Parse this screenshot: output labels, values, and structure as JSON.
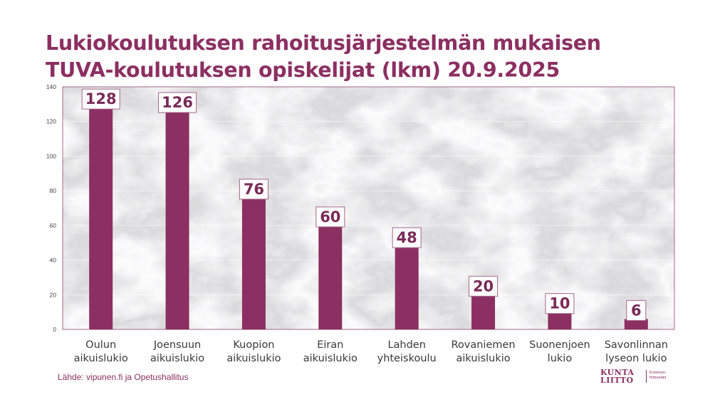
{
  "title": {
    "line1": "Lukiokoulutuksen rahoitusjärjestelmän mukaisen",
    "line2": "TUVA-koulutuksen opiskelijat (lkm) 20.9.2025"
  },
  "source": "Lähde: vipunen.fi ja Opetushallitus",
  "logo": {
    "line1": "KUNTA",
    "line2": "LIITTO",
    "sub1": "Kommun-",
    "sub2": "förbundet"
  },
  "colors": {
    "bar": "#8c2f62",
    "title": "#8c2f62",
    "frame": "#a5688a",
    "label_text": "#7a2a56"
  },
  "chart_data": {
    "type": "bar",
    "categories": [
      [
        "Oulun",
        "aikuislukio"
      ],
      [
        "Joensuun",
        "aikuislukio"
      ],
      [
        "Kuopion",
        "aikuislukio"
      ],
      [
        "Eiran",
        "aikuislukio"
      ],
      [
        "Lahden",
        "yhteiskoulu"
      ],
      [
        "Rovaniemen",
        "aikuislukio"
      ],
      [
        "Suonenjoen",
        "lukio"
      ],
      [
        "Savonlinnan",
        "lyseon lukio"
      ]
    ],
    "values": [
      128,
      126,
      76,
      60,
      48,
      20,
      10,
      6
    ],
    "yticks": [
      0,
      20,
      40,
      60,
      80,
      100,
      120,
      140
    ],
    "ylim": [
      0,
      140
    ],
    "grid": true,
    "legend": "none"
  }
}
